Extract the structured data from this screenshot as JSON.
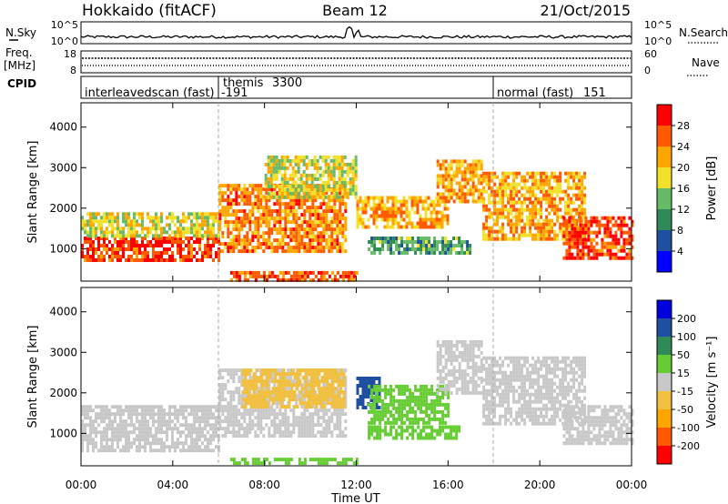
{
  "header": {
    "station": "Hokkaido (fitACF)",
    "beam": "Beam 12",
    "date": "21/Oct/2015"
  },
  "panels_top": {
    "nsky_label": "N.Sky",
    "nsky_ticks": [
      "10^5",
      "10^0"
    ],
    "nsearch_label": "N.Search",
    "nsearch_ticks": [
      "10^5",
      "10^0"
    ],
    "freq_label": "Freq.",
    "freq_unit": "[MHz]",
    "freq_ticks": [
      "18",
      "8"
    ],
    "nave_label": "Nave",
    "nave_ticks": [
      "60",
      "0"
    ],
    "cpid_label": "CPID",
    "cpid_modes": [
      {
        "name": "interleavedscan (fast)",
        "code": "-191",
        "start_hour": 0
      },
      {
        "name": "themis",
        "code": "3300",
        "start_hour": 6
      },
      {
        "name": "normal (fast)",
        "code": "151",
        "start_hour": 18
      }
    ]
  },
  "colors": {
    "power": [
      "#0000ff",
      "#1e4fa0",
      "#2e8b57",
      "#66bb66",
      "#f2e02a",
      "#ffa500",
      "#ff5a00",
      "#ff0000"
    ],
    "velocity": [
      "#ff0000",
      "#ff5a00",
      "#ffa500",
      "#f2c040",
      "#c8c8c8",
      "#66cc33",
      "#2e8b57",
      "#1e4fa0",
      "#0000dd"
    ],
    "ground_scatter": "#c8c8c8"
  },
  "chart_data": [
    {
      "type": "heatmap",
      "name": "power",
      "ylabel": "Slant Range [km]",
      "yticks": [
        "1000",
        "2000",
        "3000",
        "4000"
      ],
      "ylim": [
        200,
        4600
      ],
      "xlim": [
        0,
        24
      ],
      "colorbar_label": "Power [dB]",
      "colorbar_ticks": [
        "4",
        "8",
        "12",
        "16",
        "20",
        "24",
        "28"
      ],
      "colorbar_range": [
        0,
        32
      ],
      "echo_bands": [
        {
          "t_start": 0,
          "t_end": 6,
          "r_low": 700,
          "r_high": 1300,
          "power": 28
        },
        {
          "t_start": 0,
          "t_end": 6,
          "r_low": 1300,
          "r_high": 1900,
          "power": 18
        },
        {
          "t_start": 6,
          "t_end": 11.5,
          "r_low": 900,
          "r_high": 2600,
          "power": 24
        },
        {
          "t_start": 8,
          "t_end": 12,
          "r_low": 2300,
          "r_high": 3300,
          "power": 18
        },
        {
          "t_start": 12,
          "t_end": 16,
          "r_low": 1500,
          "r_high": 2300,
          "power": 22
        },
        {
          "t_start": 12.5,
          "t_end": 17,
          "r_low": 900,
          "r_high": 1300,
          "power": 12
        },
        {
          "t_start": 15.5,
          "t_end": 17.5,
          "r_low": 2200,
          "r_high": 3200,
          "power": 22
        },
        {
          "t_start": 17.5,
          "t_end": 22,
          "r_low": 1200,
          "r_high": 2900,
          "power": 22
        },
        {
          "t_start": 21,
          "t_end": 24,
          "r_low": 800,
          "r_high": 1800,
          "power": 28
        },
        {
          "t_start": 6.5,
          "t_end": 12,
          "r_low": 250,
          "r_high": 450,
          "power": 26
        }
      ]
    },
    {
      "type": "heatmap",
      "name": "velocity",
      "ylabel": "Slant Range [km]",
      "yticks": [
        "1000",
        "2000",
        "3000",
        "4000"
      ],
      "ylim": [
        200,
        4600
      ],
      "xlim": [
        0,
        24
      ],
      "xlabel": "Time UT",
      "xticks": [
        "00:00",
        "04:00",
        "08:00",
        "12:00",
        "16:00",
        "20:00",
        "00:00"
      ],
      "colorbar_label": "Velocity [m s⁻¹]",
      "colorbar_ticks": [
        "200",
        "100",
        "50",
        "15",
        "-15",
        "-50",
        "-100",
        "-200"
      ],
      "echo_bands": [
        {
          "t_start": 0,
          "t_end": 6,
          "r_low": 600,
          "r_high": 1700,
          "velocity": 0
        },
        {
          "t_start": 6,
          "t_end": 11.5,
          "r_low": 900,
          "r_high": 2600,
          "velocity": 0
        },
        {
          "t_start": 7,
          "t_end": 11.5,
          "r_low": 1700,
          "r_high": 2600,
          "velocity": -40
        },
        {
          "t_start": 12,
          "t_end": 13,
          "r_low": 1600,
          "r_high": 2400,
          "velocity": 150
        },
        {
          "t_start": 12.5,
          "t_end": 16,
          "r_low": 1300,
          "r_high": 2200,
          "velocity": 40
        },
        {
          "t_start": 12.5,
          "t_end": 16.5,
          "r_low": 900,
          "r_high": 1200,
          "velocity": 40
        },
        {
          "t_start": 15.5,
          "t_end": 17.5,
          "r_low": 2000,
          "r_high": 3300,
          "velocity": 0
        },
        {
          "t_start": 17.5,
          "t_end": 22,
          "r_low": 1200,
          "r_high": 2900,
          "velocity": 0
        },
        {
          "t_start": 21,
          "t_end": 24,
          "r_low": 800,
          "r_high": 1700,
          "velocity": 0
        },
        {
          "t_start": 6.5,
          "t_end": 12,
          "r_low": 250,
          "r_high": 400,
          "velocity": 40
        }
      ]
    }
  ]
}
